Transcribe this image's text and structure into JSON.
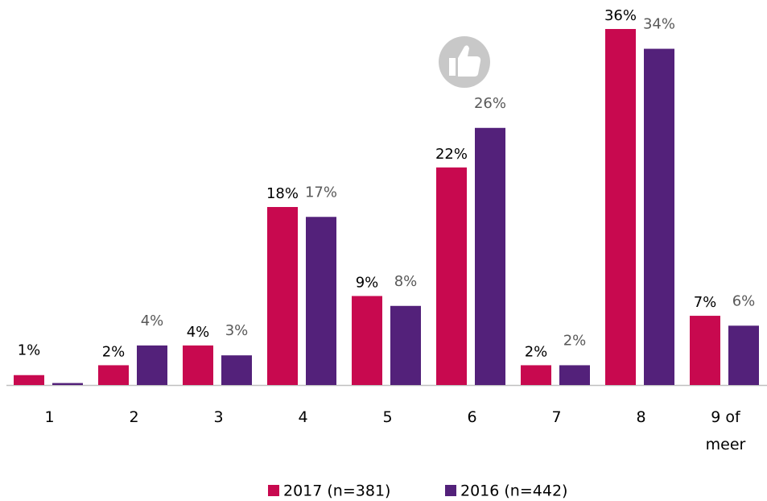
{
  "chart_data": {
    "type": "bar",
    "categories": [
      "1",
      "2",
      "3",
      "4",
      "5",
      "6",
      "7",
      "8",
      "9 of meer"
    ],
    "series": [
      {
        "name": "2017 (n=381)",
        "color": "#c8094f",
        "values": [
          1,
          2,
          4,
          18,
          9,
          22,
          2,
          36,
          7
        ],
        "value_labels": [
          "1%",
          "2%",
          "4%",
          "18%",
          "9%",
          "22%",
          "2%",
          "36%",
          "7%"
        ]
      },
      {
        "name": "2016 (n=442)",
        "color": "#53217a",
        "values": [
          0.2,
          4,
          3,
          17,
          8,
          26,
          2,
          34,
          6
        ],
        "value_labels": [
          null,
          "4%",
          "3%",
          "17%",
          "8%",
          "26%",
          "2%",
          "34%",
          "6%"
        ]
      }
    ],
    "ylim": [
      0,
      36
    ]
  }
}
